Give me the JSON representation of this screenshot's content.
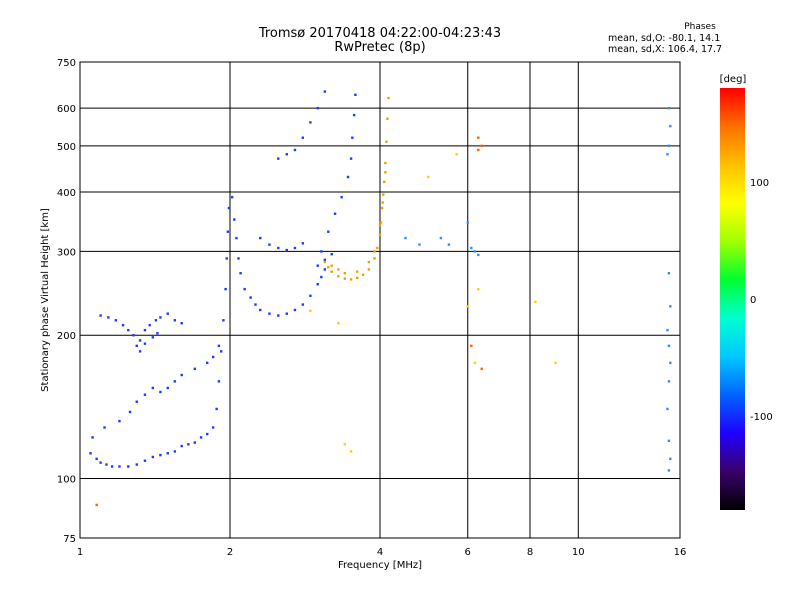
{
  "title": "Tromsø 20170418 04:22:00-04:23:43",
  "subtitle": "RwPretec (8p)",
  "phase_box": {
    "heading": "Phases",
    "line1": "mean, sd,O: -80.1, 14.1",
    "line2": "mean, sd,X: 106.4, 17.7"
  },
  "colorbar": {
    "label": "[deg]",
    "range": [
      -180,
      180
    ],
    "ticks": [
      {
        "value": 100,
        "label": "100"
      },
      {
        "value": 0,
        "label": "0"
      },
      {
        "value": -100,
        "label": "-100"
      }
    ],
    "stops": [
      "#000000",
      "#3a006a",
      "#1f00ff",
      "#0064ff",
      "#00c8ff",
      "#00ffd0",
      "#00ff30",
      "#a0ff00",
      "#ffff00",
      "#ffc000",
      "#ff7000",
      "#ff0000"
    ]
  },
  "colors": {
    "o_mode_blue": "#1a3cff",
    "o_mode_light": "#2a90ff",
    "x_mode_orange": "#f0a000",
    "x_mode_red": "#ff6000",
    "scatter_yellow": "#ffd000"
  },
  "chart_data": {
    "type": "scatter",
    "xlabel": "Frequency [MHz]",
    "ylabel": "Stationary phase Virtual Height [km]",
    "x_scale": "log",
    "y_scale": "log",
    "xlim": [
      1,
      16
    ],
    "ylim": [
      75,
      750
    ],
    "x_ticks": [
      1,
      2,
      4,
      6,
      8,
      10,
      16
    ],
    "x_tick_labels": [
      "1",
      "2",
      "4",
      "6",
      "8",
      "10",
      "16"
    ],
    "y_ticks": [
      75,
      100,
      200,
      300,
      400,
      500,
      600,
      750
    ],
    "y_tick_labels": [
      "75",
      "100",
      "200",
      "300",
      "400",
      "500",
      "600",
      "750"
    ],
    "grid": true,
    "series": [
      {
        "color_key": "o_mode_blue",
        "points": [
          [
            1.05,
            113
          ],
          [
            1.08,
            110
          ],
          [
            1.1,
            108
          ],
          [
            1.13,
            107
          ],
          [
            1.16,
            106
          ],
          [
            1.2,
            106
          ],
          [
            1.25,
            106
          ],
          [
            1.3,
            107
          ],
          [
            1.35,
            109
          ],
          [
            1.4,
            111
          ],
          [
            1.45,
            112
          ],
          [
            1.5,
            113
          ],
          [
            1.55,
            114
          ],
          [
            1.6,
            117
          ],
          [
            1.65,
            118
          ],
          [
            1.7,
            119
          ],
          [
            1.75,
            122
          ],
          [
            1.8,
            124
          ],
          [
            1.85,
            128
          ],
          [
            1.88,
            140
          ],
          [
            1.9,
            160
          ],
          [
            1.92,
            185
          ],
          [
            1.94,
            215
          ],
          [
            1.96,
            250
          ],
          [
            1.97,
            290
          ],
          [
            1.98,
            330
          ],
          [
            1.99,
            370
          ],
          [
            1.06,
            122
          ],
          [
            1.12,
            128
          ],
          [
            1.2,
            132
          ],
          [
            1.26,
            138
          ],
          [
            1.3,
            145
          ],
          [
            1.35,
            150
          ],
          [
            1.4,
            155
          ],
          [
            1.45,
            152
          ],
          [
            1.5,
            155
          ],
          [
            1.55,
            160
          ],
          [
            1.6,
            165
          ],
          [
            1.7,
            170
          ],
          [
            1.8,
            175
          ],
          [
            1.85,
            180
          ],
          [
            1.9,
            190
          ],
          [
            1.1,
            220
          ],
          [
            1.14,
            218
          ],
          [
            1.18,
            215
          ],
          [
            1.22,
            210
          ],
          [
            1.25,
            205
          ],
          [
            1.28,
            200
          ],
          [
            1.32,
            195
          ],
          [
            1.35,
            205
          ],
          [
            1.38,
            210
          ],
          [
            1.42,
            215
          ],
          [
            1.45,
            218
          ],
          [
            1.5,
            222
          ],
          [
            1.55,
            215
          ],
          [
            1.6,
            212
          ],
          [
            1.3,
            190
          ],
          [
            1.32,
            185
          ],
          [
            1.35,
            192
          ],
          [
            1.4,
            198
          ],
          [
            1.43,
            202
          ],
          [
            2.02,
            390
          ],
          [
            2.04,
            350
          ],
          [
            2.06,
            320
          ],
          [
            2.08,
            290
          ],
          [
            2.1,
            270
          ],
          [
            2.14,
            250
          ],
          [
            2.2,
            240
          ],
          [
            2.25,
            232
          ],
          [
            2.3,
            226
          ],
          [
            2.4,
            222
          ],
          [
            2.5,
            220
          ],
          [
            2.6,
            222
          ],
          [
            2.7,
            226
          ],
          [
            2.8,
            232
          ],
          [
            2.9,
            242
          ],
          [
            3.0,
            256
          ],
          [
            3.05,
            265
          ],
          [
            3.1,
            275
          ],
          [
            2.3,
            320
          ],
          [
            2.4,
            310
          ],
          [
            2.5,
            305
          ],
          [
            2.6,
            302
          ],
          [
            2.7,
            305
          ],
          [
            2.8,
            312
          ],
          [
            2.5,
            470
          ],
          [
            2.6,
            480
          ],
          [
            2.7,
            490
          ],
          [
            2.8,
            520
          ],
          [
            2.9,
            560
          ],
          [
            3.0,
            600
          ],
          [
            3.1,
            650
          ],
          [
            3.05,
            300
          ],
          [
            3.15,
            330
          ],
          [
            3.25,
            360
          ],
          [
            3.35,
            390
          ],
          [
            3.45,
            430
          ],
          [
            3.5,
            470
          ],
          [
            3.52,
            520
          ],
          [
            3.55,
            580
          ],
          [
            3.57,
            640
          ],
          [
            3.0,
            280
          ],
          [
            3.1,
            288
          ],
          [
            3.2,
            296
          ]
        ]
      },
      {
        "color_key": "x_mode_orange",
        "points": [
          [
            3.1,
            285
          ],
          [
            3.15,
            278
          ],
          [
            3.2,
            272
          ],
          [
            3.3,
            266
          ],
          [
            3.4,
            263
          ],
          [
            3.5,
            262
          ],
          [
            3.6,
            264
          ],
          [
            3.7,
            268
          ],
          [
            3.8,
            275
          ],
          [
            3.9,
            290
          ],
          [
            3.95,
            305
          ],
          [
            4.0,
            325
          ],
          [
            4.02,
            345
          ],
          [
            4.04,
            370
          ],
          [
            4.06,
            395
          ],
          [
            4.08,
            420
          ],
          [
            4.1,
            460
          ],
          [
            4.12,
            510
          ],
          [
            4.14,
            570
          ],
          [
            4.16,
            630
          ],
          [
            3.2,
            280
          ],
          [
            3.3,
            275
          ],
          [
            3.4,
            270
          ],
          [
            3.6,
            272
          ],
          [
            3.8,
            285
          ],
          [
            3.9,
            300
          ],
          [
            4.0,
            340
          ],
          [
            4.05,
            380
          ],
          [
            4.1,
            440
          ]
        ]
      },
      {
        "color_key": "scatter_yellow",
        "points": [
          [
            2.9,
            225
          ],
          [
            3.3,
            212
          ],
          [
            3.4,
            118
          ],
          [
            3.5,
            114
          ],
          [
            5.0,
            430
          ],
          [
            5.7,
            480
          ],
          [
            6.0,
            230
          ],
          [
            6.2,
            175
          ],
          [
            6.3,
            250
          ],
          [
            8.2,
            235
          ],
          [
            9.0,
            175
          ]
        ]
      },
      {
        "color_key": "o_mode_light",
        "points": [
          [
            4.5,
            320
          ],
          [
            4.8,
            310
          ],
          [
            5.3,
            320
          ],
          [
            5.5,
            310
          ],
          [
            6.0,
            345
          ],
          [
            6.1,
            305
          ],
          [
            6.2,
            300
          ],
          [
            6.3,
            295
          ],
          [
            15.2,
            600
          ],
          [
            15.3,
            550
          ],
          [
            15.2,
            500
          ],
          [
            15.1,
            480
          ],
          [
            15.2,
            270
          ],
          [
            15.3,
            230
          ],
          [
            15.1,
            205
          ],
          [
            15.2,
            190
          ],
          [
            15.3,
            175
          ],
          [
            15.2,
            160
          ],
          [
            15.1,
            140
          ],
          [
            15.2,
            120
          ],
          [
            15.3,
            110
          ],
          [
            15.2,
            104
          ]
        ]
      },
      {
        "color_key": "x_mode_red",
        "points": [
          [
            1.08,
            88
          ],
          [
            6.3,
            520
          ],
          [
            6.4,
            500
          ],
          [
            6.3,
            490
          ],
          [
            6.1,
            190
          ],
          [
            6.4,
            170
          ]
        ]
      }
    ]
  }
}
